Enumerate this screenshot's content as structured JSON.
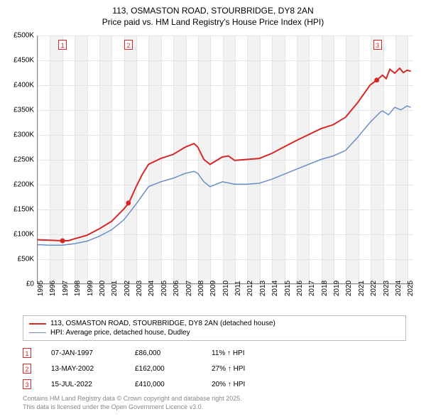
{
  "title": {
    "line1": "113, OSMASTON ROAD, STOURBRIDGE, DY8 2AN",
    "line2": "Price paid vs. HM Land Registry's House Price Index (HPI)",
    "fontsize": 12,
    "color": "#000000"
  },
  "chart": {
    "type": "line",
    "background_color": "#ffffff",
    "grid_color": "#e4e4e4",
    "shade_color": "#f2f2f2",
    "axis_color": "#888888",
    "xlim": [
      1995,
      2025.5
    ],
    "ylim": [
      0,
      500000
    ],
    "ytick_step": 50000,
    "y_ticks": [
      {
        "v": 0,
        "label": "£0"
      },
      {
        "v": 50000,
        "label": "£50K"
      },
      {
        "v": 100000,
        "label": "£100K"
      },
      {
        "v": 150000,
        "label": "£150K"
      },
      {
        "v": 200000,
        "label": "£200K"
      },
      {
        "v": 250000,
        "label": "£250K"
      },
      {
        "v": 300000,
        "label": "£300K"
      },
      {
        "v": 350000,
        "label": "£350K"
      },
      {
        "v": 400000,
        "label": "£400K"
      },
      {
        "v": 450000,
        "label": "£450K"
      },
      {
        "v": 500000,
        "label": "£500K"
      }
    ],
    "x_ticks": [
      1995,
      1996,
      1997,
      1998,
      1999,
      2000,
      2001,
      2002,
      2003,
      2004,
      2005,
      2006,
      2007,
      2008,
      2009,
      2010,
      2011,
      2012,
      2013,
      2014,
      2015,
      2016,
      2017,
      2018,
      2019,
      2020,
      2021,
      2022,
      2023,
      2024,
      2025
    ],
    "label_fontsize": 10,
    "series": [
      {
        "name": "113, OSMASTON ROAD, STOURBRIDGE, DY8 2AN (detached house)",
        "color": "#d62728",
        "line_width": 2,
        "points": [
          [
            1995,
            88000
          ],
          [
            1996,
            87000
          ],
          [
            1997,
            86000
          ],
          [
            1997.5,
            86000
          ],
          [
            1998,
            90000
          ],
          [
            1999,
            97000
          ],
          [
            2000,
            110000
          ],
          [
            2001,
            125000
          ],
          [
            2002,
            150000
          ],
          [
            2002.4,
            162000
          ],
          [
            2003,
            195000
          ],
          [
            2003.5,
            220000
          ],
          [
            2004,
            240000
          ],
          [
            2005,
            252000
          ],
          [
            2006,
            260000
          ],
          [
            2007,
            275000
          ],
          [
            2007.7,
            282000
          ],
          [
            2008,
            275000
          ],
          [
            2008.5,
            250000
          ],
          [
            2009,
            240000
          ],
          [
            2010,
            255000
          ],
          [
            2010.5,
            257000
          ],
          [
            2011,
            248000
          ],
          [
            2012,
            250000
          ],
          [
            2013,
            252000
          ],
          [
            2014,
            262000
          ],
          [
            2015,
            275000
          ],
          [
            2016,
            288000
          ],
          [
            2017,
            300000
          ],
          [
            2018,
            312000
          ],
          [
            2019,
            320000
          ],
          [
            2020,
            335000
          ],
          [
            2021,
            365000
          ],
          [
            2022,
            400000
          ],
          [
            2022.54,
            410000
          ],
          [
            2023,
            420000
          ],
          [
            2023.3,
            413000
          ],
          [
            2023.6,
            432000
          ],
          [
            2024,
            424000
          ],
          [
            2024.4,
            434000
          ],
          [
            2024.7,
            425000
          ],
          [
            2025,
            430000
          ],
          [
            2025.3,
            428000
          ]
        ]
      },
      {
        "name": "HPI: Average price, detached house, Dudley",
        "color": "#6a8ec4",
        "line_width": 1.5,
        "points": [
          [
            1995,
            78000
          ],
          [
            1996,
            77000
          ],
          [
            1997,
            77000
          ],
          [
            1998,
            80000
          ],
          [
            1999,
            85000
          ],
          [
            2000,
            95000
          ],
          [
            2001,
            108000
          ],
          [
            2002,
            128000
          ],
          [
            2003,
            160000
          ],
          [
            2004,
            195000
          ],
          [
            2005,
            205000
          ],
          [
            2006,
            212000
          ],
          [
            2007,
            222000
          ],
          [
            2007.7,
            226000
          ],
          [
            2008,
            222000
          ],
          [
            2008.5,
            205000
          ],
          [
            2009,
            195000
          ],
          [
            2010,
            205000
          ],
          [
            2011,
            200000
          ],
          [
            2012,
            200000
          ],
          [
            2013,
            202000
          ],
          [
            2014,
            210000
          ],
          [
            2015,
            220000
          ],
          [
            2016,
            230000
          ],
          [
            2017,
            240000
          ],
          [
            2018,
            250000
          ],
          [
            2019,
            257000
          ],
          [
            2020,
            268000
          ],
          [
            2021,
            295000
          ],
          [
            2022,
            325000
          ],
          [
            2022.8,
            345000
          ],
          [
            2023,
            348000
          ],
          [
            2023.5,
            340000
          ],
          [
            2024,
            355000
          ],
          [
            2024.5,
            350000
          ],
          [
            2025,
            358000
          ],
          [
            2025.3,
            355000
          ]
        ]
      }
    ],
    "sale_points": [
      {
        "x": 1997.02,
        "y": 86000,
        "color": "#d62728"
      },
      {
        "x": 2002.37,
        "y": 162000,
        "color": "#d62728"
      },
      {
        "x": 2022.54,
        "y": 410000,
        "color": "#d62728"
      }
    ],
    "markers": [
      {
        "x": 1997.02,
        "label": "1",
        "color": "#d62728"
      },
      {
        "x": 2002.37,
        "label": "2",
        "color": "#d62728"
      },
      {
        "x": 2022.54,
        "label": "3",
        "color": "#d62728"
      }
    ]
  },
  "legend": {
    "items": [
      {
        "color": "#d62728",
        "width": 2,
        "label": "113, OSMASTON ROAD, STOURBRIDGE, DY8 2AN (detached house)"
      },
      {
        "color": "#6a8ec4",
        "width": 1.5,
        "label": "HPI: Average price, detached house, Dudley"
      }
    ]
  },
  "events": [
    {
      "marker": "1",
      "color": "#d62728",
      "date": "07-JAN-1997",
      "price": "£86,000",
      "pct": "11% ↑ HPI"
    },
    {
      "marker": "2",
      "color": "#d62728",
      "date": "13-MAY-2002",
      "price": "£162,000",
      "pct": "27% ↑ HPI"
    },
    {
      "marker": "3",
      "color": "#d62728",
      "date": "15-JUL-2022",
      "price": "£410,000",
      "pct": "20% ↑ HPI"
    }
  ],
  "footer": {
    "line1": "Contains HM Land Registry data © Crown copyright and database right 2025.",
    "line2": "This data is licensed under the Open Government Licence v3.0.",
    "color": "#888888"
  }
}
